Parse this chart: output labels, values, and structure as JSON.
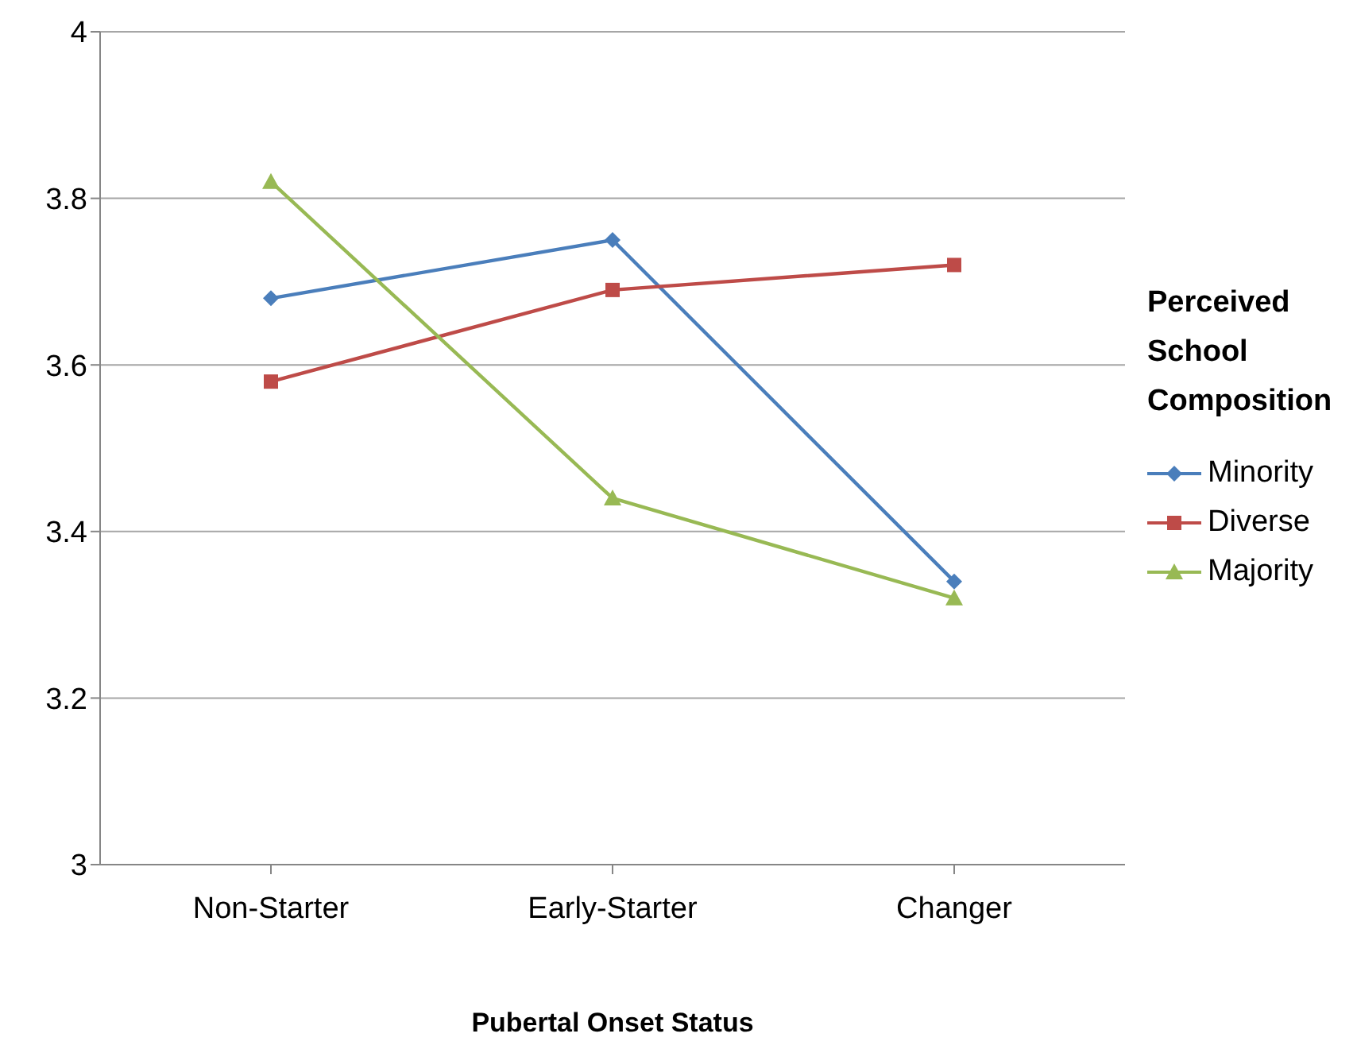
{
  "chart_data": {
    "type": "line",
    "xlabel": "Pubertal Onset Status",
    "legend_title": "Perceived School Composition",
    "categories": [
      "Non-Starter",
      "Early-Starter",
      "Changer"
    ],
    "series": [
      {
        "name": "Minority",
        "color": "#4a7ebb",
        "values": [
          3.68,
          3.75,
          3.34
        ],
        "marker": "diamond"
      },
      {
        "name": "Diverse",
        "color": "#be4b48",
        "values": [
          3.58,
          3.69,
          3.72
        ],
        "marker": "square"
      },
      {
        "name": "Majority",
        "color": "#98b954",
        "values": [
          3.82,
          3.44,
          3.32
        ],
        "marker": "triangle"
      }
    ],
    "ylim": [
      3,
      4
    ],
    "yticks": [
      3,
      3.2,
      3.4,
      3.6,
      3.8,
      4
    ],
    "grid": "y",
    "legend": "right",
    "line_style": "solid"
  }
}
